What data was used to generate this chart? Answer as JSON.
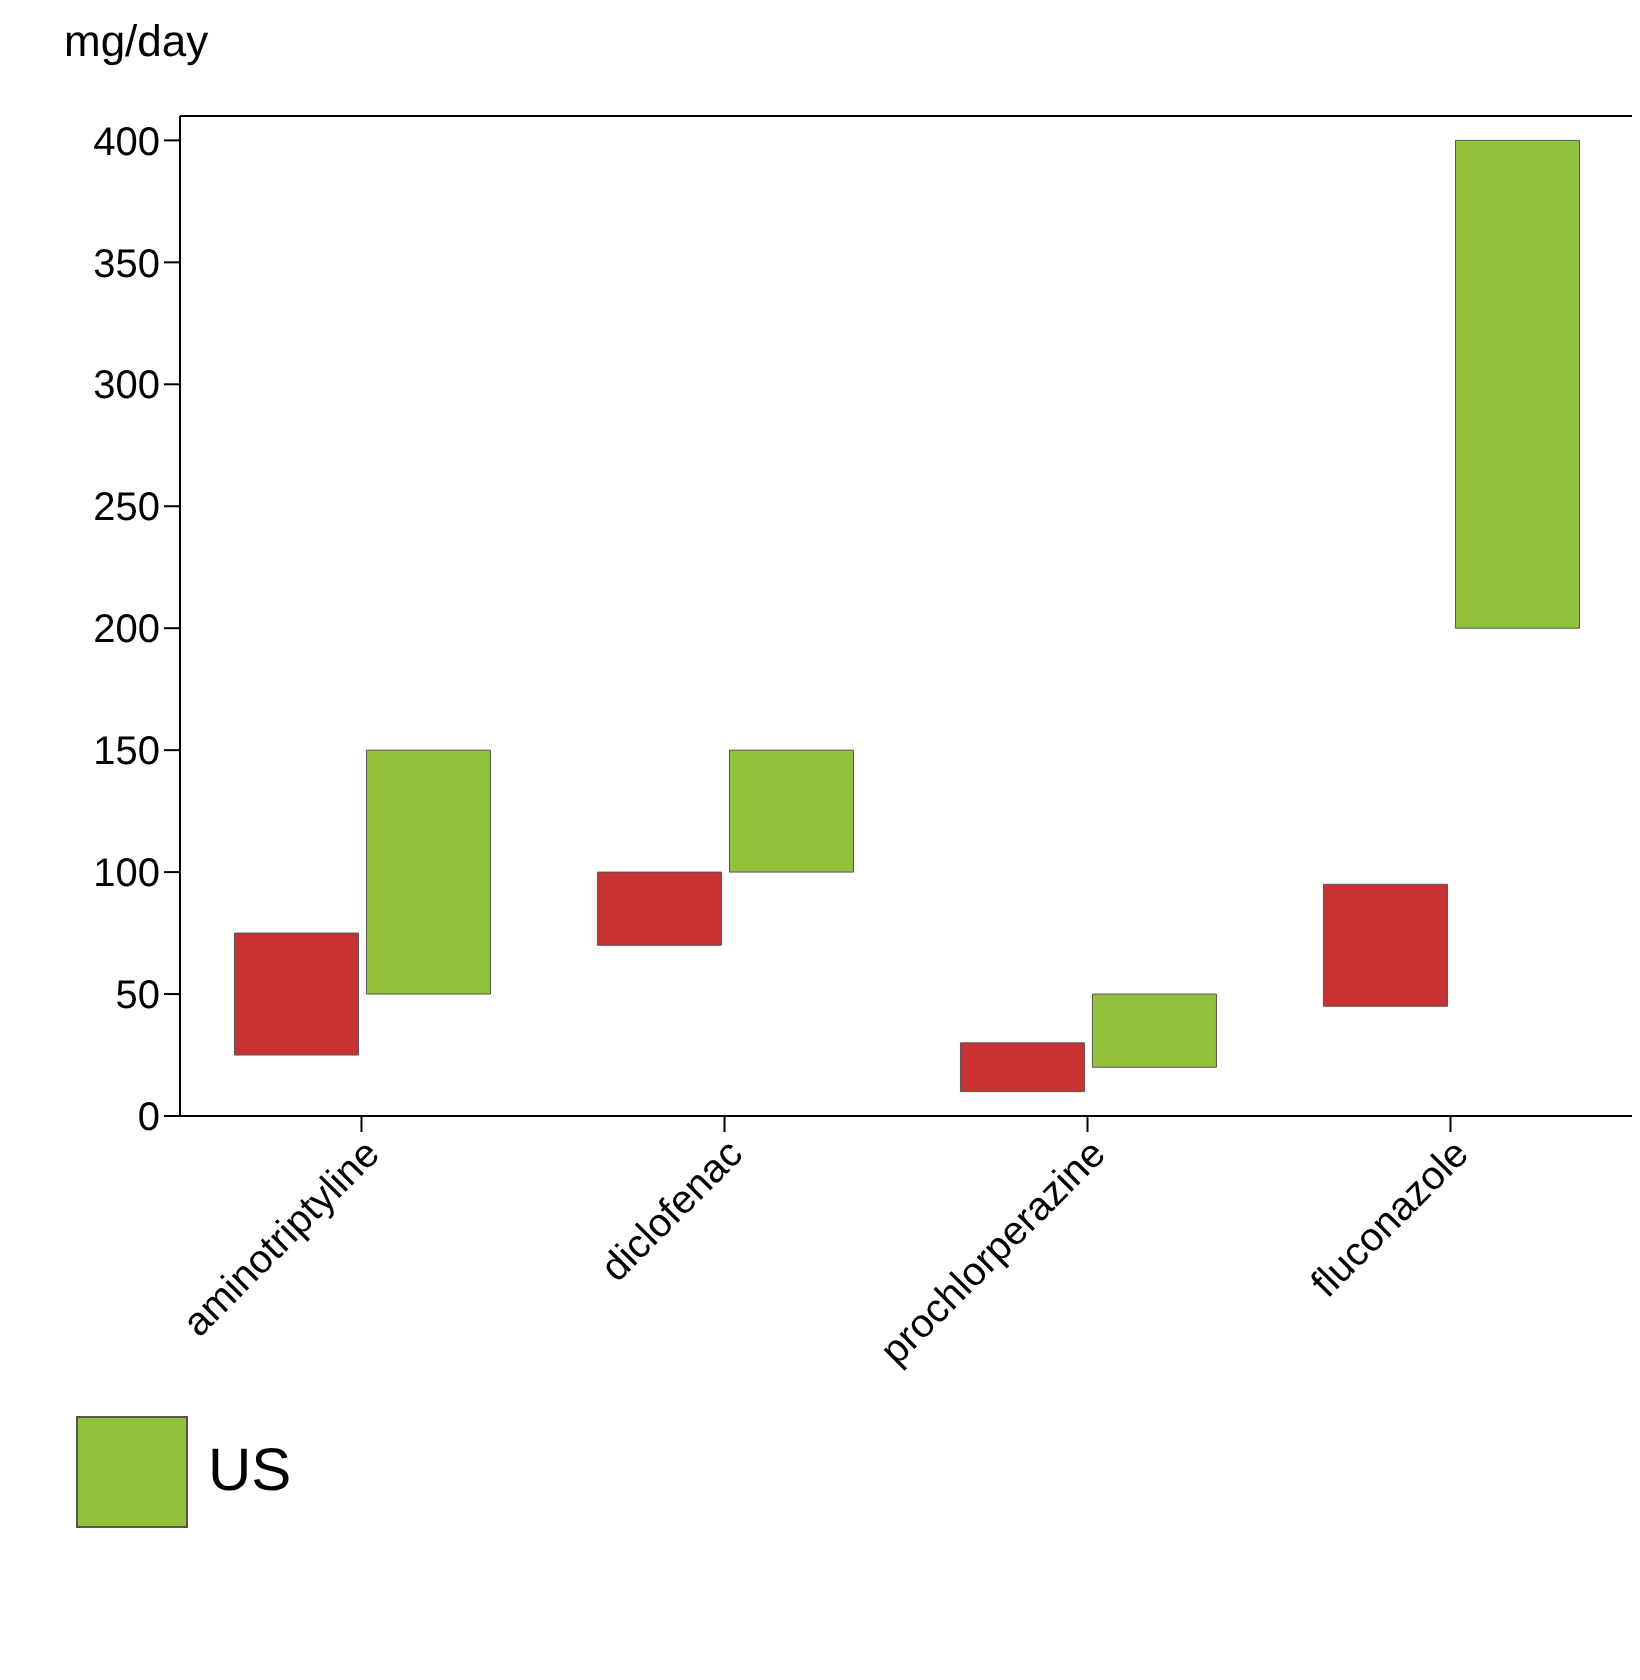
{
  "chart_data": {
    "type": "bar",
    "ylabel": "mg/day",
    "categories": [
      "aminotriptyline",
      "diclofenac",
      "prochlorperazine",
      "fluconazole"
    ],
    "series": [
      {
        "color": "#c83232",
        "base": [
          25,
          70,
          10,
          45
        ],
        "values": [
          50,
          30,
          20,
          50
        ]
      },
      {
        "name": "US",
        "color": "#92c13c",
        "base": [
          50,
          100,
          20,
          200
        ],
        "values": [
          100,
          50,
          30,
          200
        ]
      }
    ],
    "ylim": [
      0,
      410
    ],
    "yticks": [
      0,
      50,
      100,
      150,
      200,
      250,
      300,
      350,
      400
    ],
    "grid": false,
    "legend": "bottom left"
  }
}
